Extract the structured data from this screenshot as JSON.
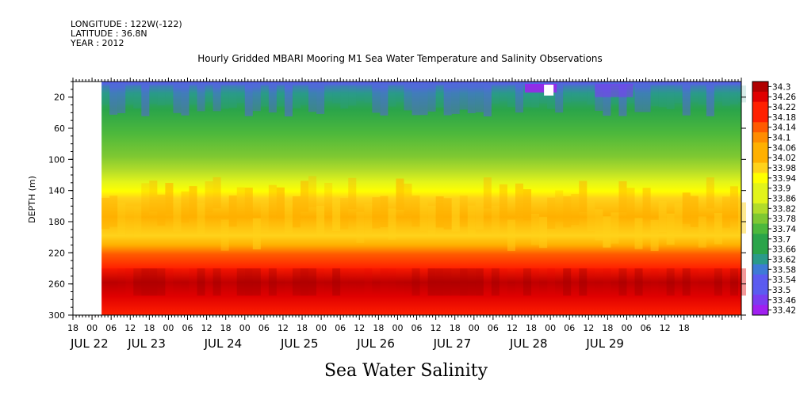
{
  "header": {
    "longitude": "LONGITUDE : 122W(-122)",
    "latitude": "LATITUDE : 36.8N",
    "year": "YEAR : 2012",
    "title": "Hourly Gridded MBARI Mooring M1 Sea Water Temperature and Salinity Observations"
  },
  "footer": {
    "variable_title": "Sea Water Salinity"
  },
  "colors": {
    "scale": [
      "#a020f0",
      "#7b3cf0",
      "#5b5bf0",
      "#3e7ad6",
      "#2a9a8a",
      "#2aa44a",
      "#4cb83c",
      "#7ec832",
      "#b2dc2a",
      "#e2f41a",
      "#ffff00",
      "#ffd21a",
      "#ffb000",
      "#ff8c00",
      "#ff5a00",
      "#ff2000",
      "#e00000",
      "#b00000"
    ]
  },
  "chart_data": {
    "type": "heatmap",
    "title": "Hourly Gridded MBARI Mooring M1 Sea Water Temperature and Salinity Observations",
    "ylabel": "DEPTH (m)",
    "xlabel": "",
    "variable": "Sea Water Salinity",
    "x_range_hours": [
      -6,
      204
    ],
    "y_range_depth_m": [
      0,
      300
    ],
    "y_inverted": true,
    "y_ticks": [
      20,
      60,
      100,
      140,
      180,
      220,
      260,
      300
    ],
    "x_tick_labels": [
      "18",
      "00",
      "06",
      "12",
      "18",
      "00",
      "06",
      "12",
      "18",
      "00",
      "06",
      "12",
      "18",
      "00",
      "06",
      "12",
      "18",
      "00",
      "06",
      "12",
      "18",
      "00",
      "06",
      "12",
      "18",
      "00",
      "06",
      "12",
      "18",
      "00",
      "06",
      "12",
      "18"
    ],
    "x_tick_hours": [
      -6,
      0,
      6,
      12,
      18,
      24,
      30,
      36,
      42,
      48,
      54,
      60,
      66,
      72,
      78,
      84,
      90,
      96,
      102,
      108,
      114,
      120,
      126,
      132,
      138,
      144,
      150,
      156,
      162,
      168,
      174,
      180,
      186
    ],
    "date_labels": [
      {
        "label": "JUL 22",
        "hour": -6
      },
      {
        "label": "JUL 23",
        "hour": 12
      },
      {
        "label": "JUL 24",
        "hour": 36
      },
      {
        "label": "JUL 25",
        "hour": 60
      },
      {
        "label": "JUL 26",
        "hour": 84
      },
      {
        "label": "JUL 27",
        "hour": 108
      },
      {
        "label": "JUL 28",
        "hour": 132
      },
      {
        "label": "JUL 29",
        "hour": 156
      }
    ],
    "data_start_hour": 3,
    "colorbar_levels": [
      34.3,
      34.26,
      34.22,
      34.18,
      34.14,
      34.1,
      34.06,
      34.02,
      33.98,
      33.94,
      33.9,
      33.86,
      33.82,
      33.78,
      33.74,
      33.7,
      33.66,
      33.62,
      33.58,
      33.54,
      33.5,
      33.46,
      33.42
    ],
    "value_range": [
      33.42,
      34.3
    ],
    "grid": false,
    "legend": "right colorbar"
  }
}
